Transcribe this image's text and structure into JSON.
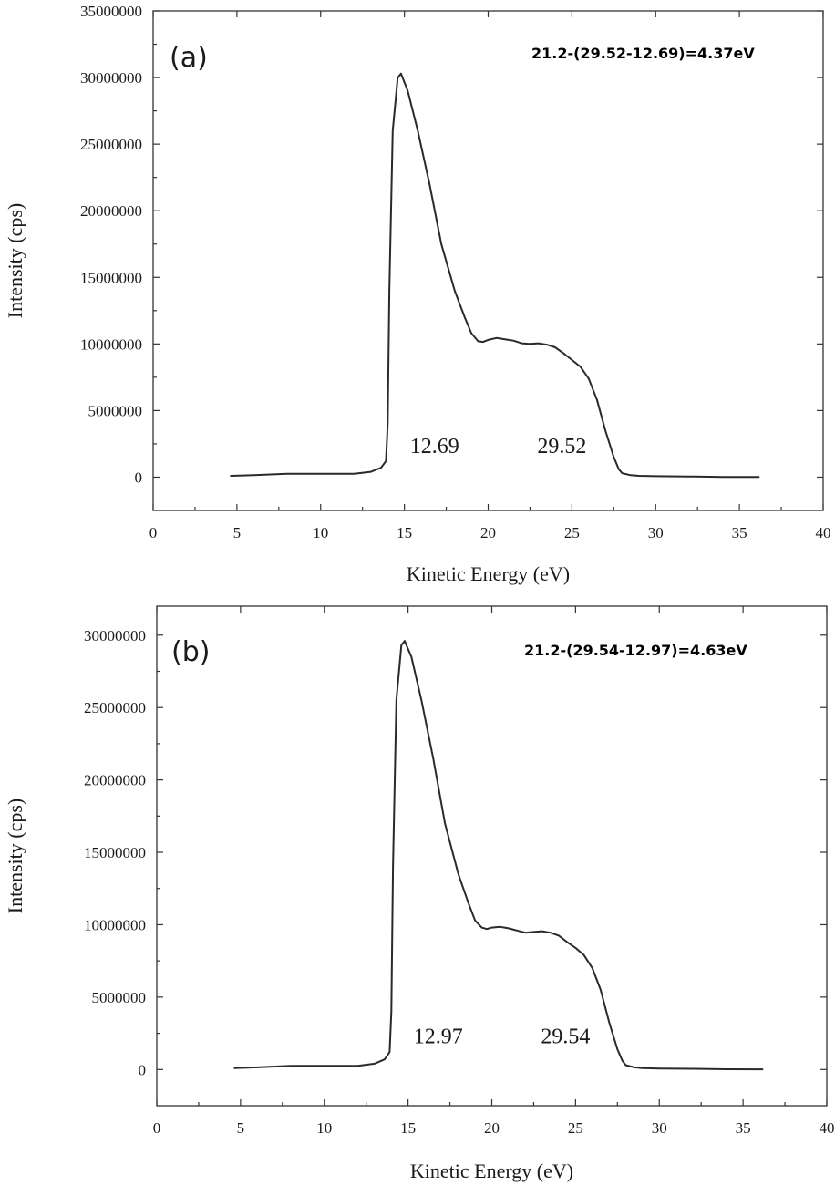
{
  "chart_data": [
    {
      "type": "line",
      "panel_label": "(a)",
      "formula": "21.2-(29.52-12.69)=4.37eV",
      "xlabel": "Kinetic Energy (eV)",
      "ylabel": "Intensity (cps)",
      "xlim": [
        0,
        40
      ],
      "ylim": [
        -2500000,
        35000000
      ],
      "x_ticks": [
        "0",
        "5",
        "10",
        "15",
        "20",
        "25",
        "30",
        "35",
        "40"
      ],
      "y_ticks": [
        "0",
        "5000000",
        "10000000",
        "15000000",
        "20000000",
        "25000000",
        "30000000",
        "35000000"
      ],
      "annotations": [
        {
          "text": "12.69",
          "x": 16.8,
          "y": 1800000
        },
        {
          "text": "29.52",
          "x": 24.4,
          "y": 1800000
        }
      ],
      "series": [
        {
          "x": [
            4.6,
            6,
            8,
            10,
            12,
            13,
            13.6,
            13.9,
            14.0,
            14.1,
            14.3,
            14.6,
            14.8,
            15.2,
            15.8,
            16.5,
            17.2,
            18.0,
            18.6,
            19.0,
            19.4,
            19.7,
            20.0,
            20.5,
            21.0,
            21.5,
            22.0,
            22.5,
            23.0,
            23.5,
            24.0,
            24.5,
            25.0,
            25.5,
            26.0,
            26.5,
            27.0,
            27.5,
            27.8,
            28.0,
            28.5,
            29,
            30,
            32,
            34,
            36.2
          ],
          "y": [
            100000,
            150000,
            250000,
            250000,
            250000,
            400000,
            700000,
            1200000,
            4000000,
            14000000,
            26000000,
            30000000,
            30300000,
            29000000,
            26000000,
            22000000,
            17500000,
            14000000,
            12000000,
            10800000,
            10200000,
            10150000,
            10300000,
            10450000,
            10350000,
            10250000,
            10050000,
            10000000,
            10050000,
            9950000,
            9750000,
            9300000,
            8800000,
            8300000,
            7400000,
            5800000,
            3500000,
            1500000,
            600000,
            300000,
            150000,
            100000,
            70000,
            50000,
            20000,
            10000
          ]
        }
      ]
    },
    {
      "type": "line",
      "panel_label": "(b)",
      "formula": "21.2-(29.54-12.97)=4.63eV",
      "xlabel": "Kinetic Energy (eV)",
      "ylabel": "Intensity (cps)",
      "xlim": [
        0,
        40
      ],
      "ylim": [
        -2500000,
        32000000
      ],
      "x_ticks": [
        "0",
        "5",
        "10",
        "15",
        "20",
        "25",
        "30",
        "35",
        "40"
      ],
      "y_ticks": [
        "0",
        "5000000",
        "10000000",
        "15000000",
        "20000000",
        "25000000",
        "30000000"
      ],
      "annotations": [
        {
          "text": "12.97",
          "x": 16.8,
          "y": 1800000
        },
        {
          "text": "29.54",
          "x": 24.4,
          "y": 1800000
        }
      ],
      "series": [
        {
          "x": [
            4.6,
            6,
            8,
            10,
            12,
            13,
            13.6,
            13.9,
            14.0,
            14.1,
            14.3,
            14.6,
            14.8,
            15.2,
            15.8,
            16.5,
            17.2,
            18.0,
            18.6,
            19.0,
            19.4,
            19.7,
            20.0,
            20.5,
            21.0,
            21.5,
            22.0,
            22.5,
            23.0,
            23.5,
            24.0,
            24.5,
            25.0,
            25.5,
            26.0,
            26.5,
            27.0,
            27.5,
            27.8,
            28.0,
            28.5,
            29,
            30,
            32,
            34,
            36.2
          ],
          "y": [
            100000,
            150000,
            250000,
            250000,
            250000,
            400000,
            700000,
            1200000,
            4000000,
            14000000,
            25500000,
            29300000,
            29600000,
            28500000,
            25500000,
            21500000,
            17000000,
            13500000,
            11500000,
            10300000,
            9800000,
            9700000,
            9800000,
            9850000,
            9750000,
            9600000,
            9450000,
            9500000,
            9550000,
            9450000,
            9250000,
            8800000,
            8400000,
            7900000,
            7000000,
            5500000,
            3300000,
            1400000,
            600000,
            300000,
            150000,
            100000,
            70000,
            50000,
            20000,
            10000
          ]
        }
      ]
    }
  ]
}
